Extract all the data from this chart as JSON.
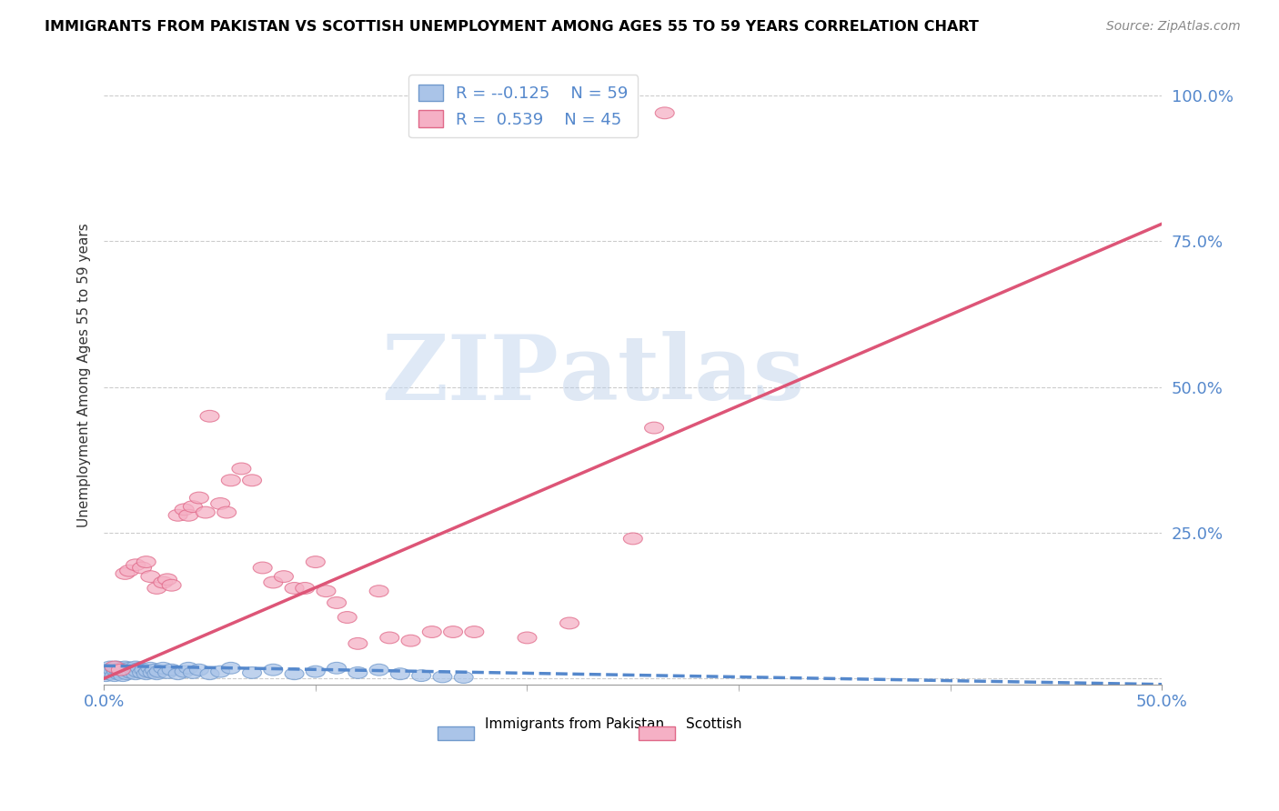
{
  "title": "IMMIGRANTS FROM PAKISTAN VS SCOTTISH UNEMPLOYMENT AMONG AGES 55 TO 59 YEARS CORRELATION CHART",
  "source": "Source: ZipAtlas.com",
  "ylabel": "Unemployment Among Ages 55 to 59 years",
  "xlim": [
    0.0,
    0.5
  ],
  "ylim": [
    -0.01,
    1.05
  ],
  "xticks": [
    0.0,
    0.1,
    0.2,
    0.3,
    0.4,
    0.5
  ],
  "xticklabels": [
    "0.0%",
    "",
    "",
    "",
    "",
    "50.0%"
  ],
  "yticks": [
    0.0,
    0.25,
    0.5,
    0.75,
    1.0
  ],
  "yticklabels": [
    "",
    "25.0%",
    "50.0%",
    "75.0%",
    "100.0%"
  ],
  "color_blue": "#aac4e8",
  "color_pink": "#f5b0c5",
  "color_blue_edge": "#7099cc",
  "color_pink_edge": "#e06888",
  "color_blue_line": "#5588cc",
  "color_pink_line": "#dd5577",
  "color_axis_labels": "#5588cc",
  "watermark_zip": "ZIP",
  "watermark_atlas": "atlas",
  "blue_r": "-0.125",
  "blue_n": "59",
  "pink_r": "0.539",
  "pink_n": "45",
  "blue_line_x0": 0.0,
  "blue_line_x1": 0.5,
  "blue_line_y0": 0.022,
  "blue_line_y1": -0.01,
  "pink_line_x0": 0.0,
  "pink_line_x1": 0.5,
  "pink_line_y0": 0.0,
  "pink_line_y1": 0.78,
  "blue_pts": [
    [
      0.001,
      0.005
    ],
    [
      0.002,
      0.008
    ],
    [
      0.002,
      0.015
    ],
    [
      0.003,
      0.01
    ],
    [
      0.003,
      0.02
    ],
    [
      0.004,
      0.008
    ],
    [
      0.004,
      0.015
    ],
    [
      0.005,
      0.018
    ],
    [
      0.005,
      0.005
    ],
    [
      0.006,
      0.012
    ],
    [
      0.006,
      0.02
    ],
    [
      0.007,
      0.008
    ],
    [
      0.007,
      0.015
    ],
    [
      0.008,
      0.01
    ],
    [
      0.008,
      0.018
    ],
    [
      0.009,
      0.012
    ],
    [
      0.009,
      0.005
    ],
    [
      0.01,
      0.015
    ],
    [
      0.01,
      0.02
    ],
    [
      0.011,
      0.008
    ],
    [
      0.012,
      0.012
    ],
    [
      0.012,
      0.018
    ],
    [
      0.013,
      0.01
    ],
    [
      0.014,
      0.015
    ],
    [
      0.015,
      0.008
    ],
    [
      0.015,
      0.02
    ],
    [
      0.016,
      0.012
    ],
    [
      0.017,
      0.018
    ],
    [
      0.018,
      0.01
    ],
    [
      0.019,
      0.015
    ],
    [
      0.02,
      0.008
    ],
    [
      0.021,
      0.012
    ],
    [
      0.022,
      0.018
    ],
    [
      0.023,
      0.01
    ],
    [
      0.024,
      0.015
    ],
    [
      0.025,
      0.008
    ],
    [
      0.026,
      0.012
    ],
    [
      0.028,
      0.018
    ],
    [
      0.03,
      0.01
    ],
    [
      0.032,
      0.015
    ],
    [
      0.035,
      0.008
    ],
    [
      0.038,
      0.012
    ],
    [
      0.04,
      0.018
    ],
    [
      0.042,
      0.01
    ],
    [
      0.045,
      0.015
    ],
    [
      0.05,
      0.008
    ],
    [
      0.055,
      0.012
    ],
    [
      0.06,
      0.018
    ],
    [
      0.07,
      0.01
    ],
    [
      0.08,
      0.015
    ],
    [
      0.09,
      0.008
    ],
    [
      0.1,
      0.012
    ],
    [
      0.11,
      0.018
    ],
    [
      0.12,
      0.01
    ],
    [
      0.13,
      0.015
    ],
    [
      0.14,
      0.008
    ],
    [
      0.15,
      0.005
    ],
    [
      0.16,
      0.003
    ],
    [
      0.17,
      0.002
    ]
  ],
  "pink_pts": [
    [
      0.005,
      0.02
    ],
    [
      0.008,
      0.015
    ],
    [
      0.01,
      0.18
    ],
    [
      0.012,
      0.185
    ],
    [
      0.015,
      0.195
    ],
    [
      0.018,
      0.19
    ],
    [
      0.02,
      0.2
    ],
    [
      0.022,
      0.175
    ],
    [
      0.025,
      0.155
    ],
    [
      0.028,
      0.165
    ],
    [
      0.03,
      0.17
    ],
    [
      0.032,
      0.16
    ],
    [
      0.035,
      0.28
    ],
    [
      0.038,
      0.29
    ],
    [
      0.04,
      0.28
    ],
    [
      0.042,
      0.295
    ],
    [
      0.045,
      0.31
    ],
    [
      0.048,
      0.285
    ],
    [
      0.05,
      0.45
    ],
    [
      0.055,
      0.3
    ],
    [
      0.058,
      0.285
    ],
    [
      0.06,
      0.34
    ],
    [
      0.065,
      0.36
    ],
    [
      0.07,
      0.34
    ],
    [
      0.075,
      0.19
    ],
    [
      0.08,
      0.165
    ],
    [
      0.085,
      0.175
    ],
    [
      0.09,
      0.155
    ],
    [
      0.095,
      0.155
    ],
    [
      0.1,
      0.2
    ],
    [
      0.105,
      0.15
    ],
    [
      0.11,
      0.13
    ],
    [
      0.115,
      0.105
    ],
    [
      0.12,
      0.06
    ],
    [
      0.13,
      0.15
    ],
    [
      0.135,
      0.07
    ],
    [
      0.145,
      0.065
    ],
    [
      0.155,
      0.08
    ],
    [
      0.165,
      0.08
    ],
    [
      0.175,
      0.08
    ],
    [
      0.2,
      0.07
    ],
    [
      0.22,
      0.095
    ],
    [
      0.25,
      0.24
    ],
    [
      0.26,
      0.43
    ],
    [
      0.265,
      0.97
    ]
  ]
}
